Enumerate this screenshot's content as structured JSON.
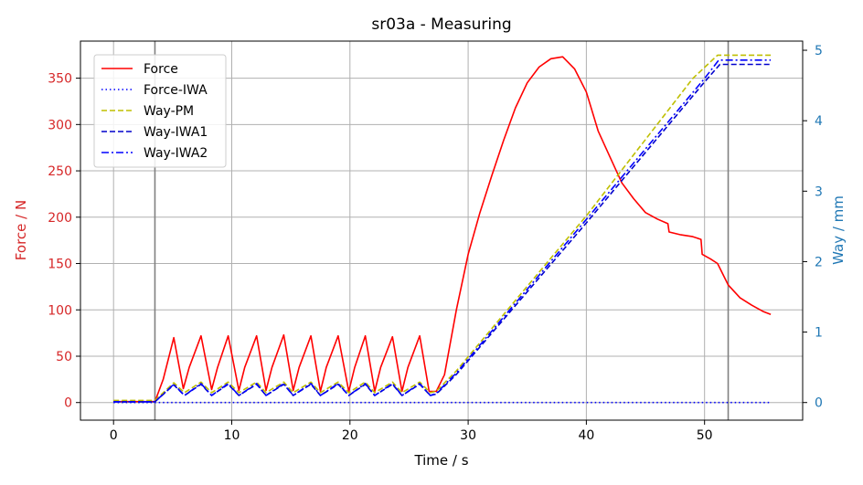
{
  "chart_data": {
    "type": "line",
    "title": "sr03a - Measuring",
    "xlabel": "Time / s",
    "ylabel_left": "Force / N",
    "ylabel_right": "Way / mm",
    "xlim": [
      -2.8,
      58.3
    ],
    "ylim_left": [
      -19,
      390
    ],
    "ylim_right": [
      -0.25,
      5.13
    ],
    "x_ticks": [
      0,
      10,
      20,
      30,
      40,
      50
    ],
    "y_ticks_left": [
      0,
      50,
      100,
      150,
      200,
      250,
      300,
      350
    ],
    "y_ticks_right": [
      0,
      1,
      2,
      3,
      4,
      5
    ],
    "grid": true,
    "legend_position": "top-left",
    "vertical_markers": [
      3.5,
      52.0
    ],
    "colors": {
      "left_axis": "#d62728",
      "right_axis": "#1f77b4",
      "marker": "#808080",
      "grid": "#b0b0b0"
    },
    "series": [
      {
        "name": "Force",
        "axis": "left",
        "color": "#ff0000",
        "style": "solid",
        "points": [
          [
            0,
            1
          ],
          [
            3.5,
            1
          ],
          [
            4.2,
            25
          ],
          [
            5.1,
            70
          ],
          [
            5.9,
            15
          ],
          [
            6.4,
            38
          ],
          [
            7.4,
            72
          ],
          [
            8.3,
            14
          ],
          [
            8.8,
            38
          ],
          [
            9.7,
            72
          ],
          [
            10.6,
            13
          ],
          [
            11.1,
            38
          ],
          [
            12.1,
            72
          ],
          [
            12.9,
            13
          ],
          [
            13.4,
            38
          ],
          [
            14.4,
            73
          ],
          [
            15.2,
            13
          ],
          [
            15.7,
            38
          ],
          [
            16.7,
            72
          ],
          [
            17.5,
            12
          ],
          [
            18.0,
            38
          ],
          [
            19.0,
            72
          ],
          [
            19.9,
            12
          ],
          [
            20.4,
            38
          ],
          [
            21.3,
            72
          ],
          [
            22.1,
            12
          ],
          [
            22.6,
            38
          ],
          [
            23.6,
            71
          ],
          [
            24.4,
            12
          ],
          [
            24.9,
            38
          ],
          [
            25.9,
            72
          ],
          [
            26.7,
            12
          ],
          [
            27.3,
            12
          ],
          [
            28,
            30
          ],
          [
            29,
            100
          ],
          [
            30,
            160
          ],
          [
            31,
            205
          ],
          [
            32,
            245
          ],
          [
            33,
            283
          ],
          [
            34,
            318
          ],
          [
            35,
            345
          ],
          [
            36,
            362
          ],
          [
            37,
            371
          ],
          [
            38,
            373
          ],
          [
            39,
            360
          ],
          [
            40,
            335
          ],
          [
            41,
            293
          ],
          [
            42,
            265
          ],
          [
            43,
            237
          ],
          [
            44,
            220
          ],
          [
            45,
            205
          ],
          [
            46,
            198
          ],
          [
            46.9,
            193
          ],
          [
            47,
            184
          ],
          [
            48,
            181
          ],
          [
            49,
            179
          ],
          [
            49.7,
            176
          ],
          [
            49.8,
            160
          ],
          [
            50.5,
            155
          ],
          [
            51.1,
            150
          ],
          [
            52,
            127
          ],
          [
            53,
            113
          ],
          [
            54,
            105
          ],
          [
            55,
            98
          ],
          [
            55.6,
            95
          ]
        ]
      },
      {
        "name": "Force-IWA",
        "axis": "left",
        "color": "#0000ff",
        "style": "dotted",
        "points": [
          [
            0,
            0
          ],
          [
            55.6,
            0
          ]
        ]
      },
      {
        "name": "Way-PM",
        "axis": "right",
        "color": "#bfbf00",
        "style": "dashed",
        "points": [
          [
            0,
            0.03
          ],
          [
            3.5,
            0.03
          ],
          [
            5.1,
            0.28
          ],
          [
            6.0,
            0.14
          ],
          [
            7.4,
            0.29
          ],
          [
            8.3,
            0.14
          ],
          [
            9.7,
            0.29
          ],
          [
            10.6,
            0.14
          ],
          [
            12.1,
            0.29
          ],
          [
            12.9,
            0.14
          ],
          [
            14.4,
            0.29
          ],
          [
            15.2,
            0.14
          ],
          [
            16.7,
            0.29
          ],
          [
            17.5,
            0.14
          ],
          [
            19.0,
            0.29
          ],
          [
            19.9,
            0.14
          ],
          [
            21.3,
            0.29
          ],
          [
            22.1,
            0.14
          ],
          [
            23.6,
            0.29
          ],
          [
            24.4,
            0.14
          ],
          [
            25.9,
            0.29
          ],
          [
            26.8,
            0.14
          ],
          [
            27.3,
            0.16
          ],
          [
            29,
            0.45
          ],
          [
            40,
            2.65
          ],
          [
            49,
            4.6
          ],
          [
            51.1,
            4.93
          ],
          [
            55.6,
            4.93
          ]
        ]
      },
      {
        "name": "Way-IWA1",
        "axis": "right",
        "color": "#0000cc",
        "style": "dashed",
        "points": [
          [
            0,
            0.01
          ],
          [
            3.5,
            0.01
          ],
          [
            5.1,
            0.25
          ],
          [
            6.0,
            0.1
          ],
          [
            7.4,
            0.26
          ],
          [
            8.3,
            0.1
          ],
          [
            9.7,
            0.26
          ],
          [
            10.6,
            0.1
          ],
          [
            12.1,
            0.26
          ],
          [
            12.9,
            0.1
          ],
          [
            14.4,
            0.26
          ],
          [
            15.2,
            0.1
          ],
          [
            16.7,
            0.26
          ],
          [
            17.5,
            0.1
          ],
          [
            19.0,
            0.26
          ],
          [
            19.9,
            0.1
          ],
          [
            21.3,
            0.26
          ],
          [
            22.1,
            0.1
          ],
          [
            23.6,
            0.26
          ],
          [
            24.4,
            0.1
          ],
          [
            25.9,
            0.26
          ],
          [
            26.8,
            0.1
          ],
          [
            27.3,
            0.12
          ],
          [
            29,
            0.4
          ],
          [
            40,
            2.55
          ],
          [
            50,
            4.55
          ],
          [
            51.3,
            4.8
          ],
          [
            55.6,
            4.8
          ]
        ]
      },
      {
        "name": "Way-IWA2",
        "axis": "right",
        "color": "#0000ff",
        "style": "dashdot",
        "points": [
          [
            0,
            0.01
          ],
          [
            3.5,
            0.01
          ],
          [
            5.1,
            0.26
          ],
          [
            6.0,
            0.1
          ],
          [
            7.4,
            0.27
          ],
          [
            8.3,
            0.1
          ],
          [
            9.7,
            0.27
          ],
          [
            10.6,
            0.1
          ],
          [
            12.1,
            0.27
          ],
          [
            12.9,
            0.1
          ],
          [
            14.4,
            0.27
          ],
          [
            15.2,
            0.1
          ],
          [
            16.7,
            0.27
          ],
          [
            17.5,
            0.1
          ],
          [
            19.0,
            0.27
          ],
          [
            19.9,
            0.1
          ],
          [
            21.3,
            0.27
          ],
          [
            22.1,
            0.1
          ],
          [
            23.6,
            0.27
          ],
          [
            24.4,
            0.1
          ],
          [
            25.9,
            0.27
          ],
          [
            26.8,
            0.1
          ],
          [
            27.3,
            0.13
          ],
          [
            29,
            0.42
          ],
          [
            40,
            2.6
          ],
          [
            50,
            4.6
          ],
          [
            51.2,
            4.86
          ],
          [
            55.6,
            4.86
          ]
        ]
      }
    ]
  }
}
